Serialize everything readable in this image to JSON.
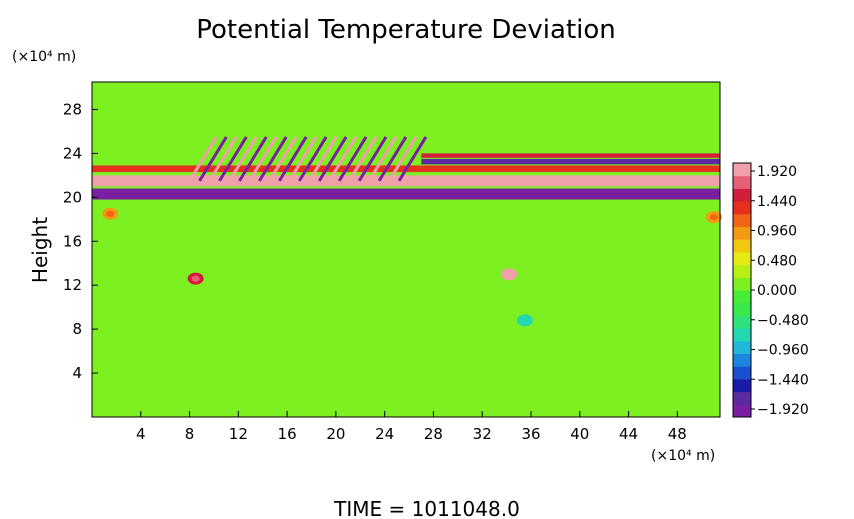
{
  "chart_data": {
    "type": "heatmap",
    "title": "Potential Temperature Deviation",
    "ylabel": "Height",
    "y_unit": "(×10⁴ m)",
    "x_unit": "(×10⁴ m)",
    "x_ticks": [
      "4",
      "8",
      "12",
      "16",
      "20",
      "24",
      "28",
      "32",
      "36",
      "40",
      "44",
      "48"
    ],
    "y_ticks": [
      "4",
      "8",
      "12",
      "16",
      "20",
      "24",
      "28"
    ],
    "xlim": [
      0,
      51.5
    ],
    "ylim": [
      0,
      30.5
    ],
    "colorbar": {
      "min": -1.92,
      "max": 1.92,
      "labels": [
        "1.920",
        "1.440",
        "0.960",
        "0.480",
        "0.000",
        "−0.480",
        "−0.960",
        "−1.440",
        "−1.920"
      ],
      "colors": [
        "#7a1fa2",
        "#5a2a9e",
        "#1a1aa8",
        "#1b4fd1",
        "#1f86e0",
        "#20b8d8",
        "#22d8b0",
        "#2ee27a",
        "#39e84a",
        "#46ec36",
        "#7cf020",
        "#b8f016",
        "#e8e812",
        "#f2c80e",
        "#f49a12",
        "#f26418",
        "#e6301e",
        "#d21e3c",
        "#e86078",
        "#f0a0a8"
      ]
    },
    "background_value": 0.0,
    "features": [
      {
        "kind": "band",
        "x0": 0,
        "x1": 51.5,
        "y0": 21.0,
        "y1": 22.0,
        "value": 1.9
      },
      {
        "kind": "band",
        "x0": 0,
        "x1": 51.5,
        "y0": 19.8,
        "y1": 20.8,
        "value": -1.9
      },
      {
        "kind": "band",
        "x0": 0,
        "x1": 51.5,
        "y0": 22.3,
        "y1": 22.9,
        "value": 1.2
      },
      {
        "kind": "band",
        "x0": 27,
        "x1": 51.5,
        "y0": 23.0,
        "y1": 23.5,
        "value": -1.6
      },
      {
        "kind": "band",
        "x0": 27,
        "x1": 51.5,
        "y0": 23.6,
        "y1": 24.0,
        "value": 1.5
      },
      {
        "kind": "blob",
        "x": 8.5,
        "y": 12.6,
        "value": 1.4
      },
      {
        "kind": "blob",
        "x": 34.2,
        "y": 13.0,
        "value": 1.8
      },
      {
        "kind": "blob",
        "x": 35.5,
        "y": 8.8,
        "value": -0.6
      },
      {
        "kind": "blob",
        "x": 1.5,
        "y": 18.5,
        "value": 0.9
      },
      {
        "kind": "blob",
        "x": 51.0,
        "y": 18.2,
        "value": 0.9
      }
    ],
    "wave_region": {
      "x0": 8,
      "x1": 26,
      "y0": 21.5,
      "y1": 25.5,
      "amplitude": 1.9
    }
  },
  "footer": {
    "time_label": "TIME  =  1011048.0"
  }
}
